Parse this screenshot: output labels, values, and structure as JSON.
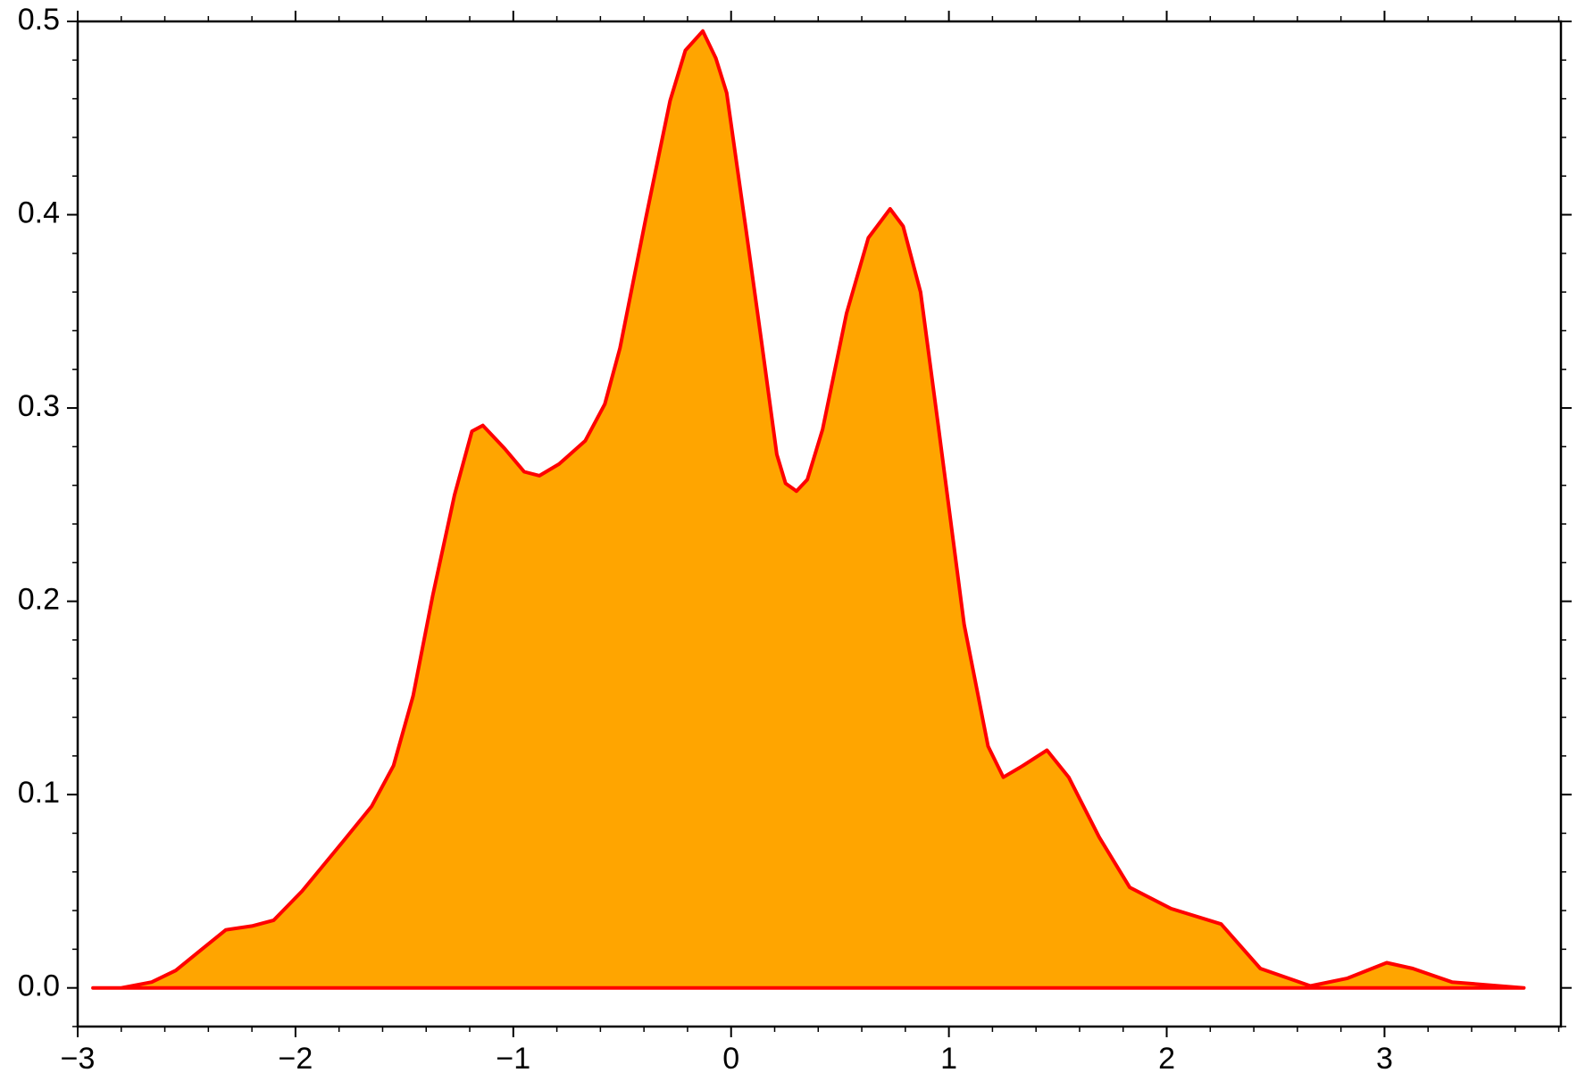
{
  "chart_data": {
    "type": "area",
    "x": [
      -2.93,
      -2.8,
      -2.66,
      -2.55,
      -2.43,
      -2.32,
      -2.2,
      -2.1,
      -1.97,
      -1.78,
      -1.65,
      -1.55,
      -1.46,
      -1.37,
      -1.27,
      -1.19,
      -1.14,
      -1.04,
      -0.95,
      -0.88,
      -0.79,
      -0.67,
      -0.58,
      -0.51,
      -0.39,
      -0.28,
      -0.21,
      -0.13,
      -0.07,
      -0.02,
      0.07,
      0.14,
      0.21,
      0.25,
      0.3,
      0.35,
      0.42,
      0.53,
      0.63,
      0.73,
      0.79,
      0.87,
      0.95,
      1.07,
      1.18,
      1.25,
      1.34,
      1.45,
      1.55,
      1.69,
      1.83,
      2.02,
      2.25,
      2.43,
      2.66,
      2.83,
      3.01,
      3.13,
      3.31,
      3.64
    ],
    "y": [
      0,
      0,
      0.003,
      0.009,
      0.02,
      0.03,
      0.032,
      0.035,
      0.05,
      0.076,
      0.094,
      0.115,
      0.151,
      0.203,
      0.255,
      0.288,
      0.291,
      0.279,
      0.267,
      0.265,
      0.271,
      0.283,
      0.302,
      0.331,
      0.399,
      0.459,
      0.485,
      0.495,
      0.481,
      0.463,
      0.391,
      0.334,
      0.276,
      0.261,
      0.257,
      0.263,
      0.289,
      0.349,
      0.388,
      0.403,
      0.394,
      0.36,
      0.292,
      0.188,
      0.125,
      0.109,
      0.115,
      0.123,
      0.109,
      0.078,
      0.052,
      0.041,
      0.033,
      0.01,
      0.001,
      0.005,
      0.013,
      0.01,
      0.003,
      0
    ],
    "color": "#ffa500",
    "line_color": "#ff0000",
    "xlim": [
      -3,
      3.81
    ],
    "ylim": [
      -0.02,
      0.5
    ],
    "xticks": [
      {
        "value": -3,
        "label": "−3"
      },
      {
        "value": -2,
        "label": "−2"
      },
      {
        "value": -1,
        "label": "−1"
      },
      0,
      1,
      2,
      3
    ],
    "yticks": [
      {
        "value": 0,
        "label": "0.0"
      },
      0.1,
      0.2,
      0.3,
      0.4,
      0.5
    ],
    "xminorticks": [
      -2.8,
      -2.6,
      -2.4,
      -2.2,
      -1.8,
      -1.6,
      -1.4,
      -1.2,
      -0.8,
      -0.6,
      -0.4,
      -0.2,
      0.2,
      0.4,
      0.6,
      0.8,
      1.2,
      1.4,
      1.6,
      1.8,
      2.2,
      2.4,
      2.6,
      2.8,
      3.2,
      3.4,
      3.6,
      3.8
    ],
    "yminorticks": [
      -0.02,
      0.02,
      0.04,
      0.06,
      0.08,
      0.12,
      0.14,
      0.16,
      0.18,
      0.22,
      0.24,
      0.26,
      0.28,
      0.32,
      0.34,
      0.36,
      0.38,
      0.42,
      0.44,
      0.46,
      0.48
    ]
  }
}
